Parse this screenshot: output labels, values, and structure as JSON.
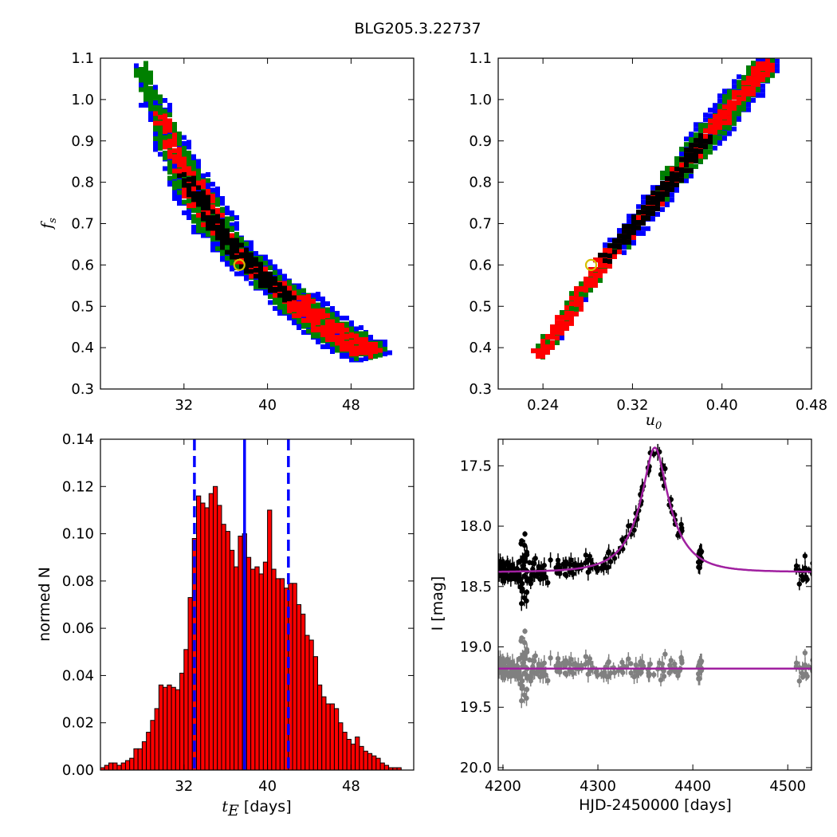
{
  "title": "BLG205.3.22737",
  "chart_data": [
    {
      "id": "tE-fs",
      "type": "heatmap",
      "xlim": [
        24,
        54
      ],
      "ylim": [
        0.3,
        1.1
      ],
      "xticks": [
        32,
        40,
        48
      ],
      "yticks": [
        0.3,
        0.4,
        0.5,
        0.6,
        0.7,
        0.8,
        0.9,
        1.0,
        1.1
      ],
      "xlabel": "",
      "ylabel": "f_s",
      "ylabel_main": "f",
      "ylabel_sub": "s",
      "colors": {
        "outer": "#0000ff",
        "mid": "#008000",
        "inner": "#ff0000",
        "core": "#000000",
        "marker": "#d4c000"
      },
      "curve": [
        [
          27.5,
          1.08
        ],
        [
          28.5,
          1.02
        ],
        [
          29.5,
          0.96
        ],
        [
          30.5,
          0.89
        ],
        [
          32,
          0.82
        ],
        [
          33.5,
          0.75
        ],
        [
          35,
          0.69
        ],
        [
          36.5,
          0.64
        ],
        [
          38,
          0.6
        ],
        [
          40,
          0.56
        ],
        [
          42,
          0.52
        ],
        [
          44,
          0.48
        ],
        [
          46,
          0.44
        ],
        [
          48,
          0.41
        ],
        [
          50,
          0.38
        ]
      ],
      "widths": [
        0.35,
        0.6,
        0.9,
        1.3,
        1.6,
        1.7,
        1.6,
        1.5,
        1.4,
        1.4,
        1.6,
        1.8,
        2.0,
        2.0,
        1.4
      ],
      "marker": [
        37.3,
        0.6
      ]
    },
    {
      "id": "u0-fs",
      "type": "heatmap",
      "xlim": [
        0.2,
        0.48
      ],
      "ylim": [
        0.3,
        1.1
      ],
      "xticks": [
        0.24,
        0.32,
        0.4,
        0.48
      ],
      "xtick_labels": [
        "0.24",
        "0.32",
        "0.40",
        "0.48"
      ],
      "yticks": [
        0.3,
        0.4,
        0.5,
        0.6,
        0.7,
        0.8,
        0.9,
        1.0,
        1.1
      ],
      "xlabel": "u_0",
      "xlabel_main": "u",
      "xlabel_sub": "0",
      "ylabel": "",
      "colors": {
        "outer": "#0000ff",
        "mid": "#008000",
        "inner": "#ff0000",
        "core": "#000000",
        "marker": "#d4c000"
      },
      "curve": [
        [
          0.235,
          0.38
        ],
        [
          0.25,
          0.44
        ],
        [
          0.265,
          0.5
        ],
        [
          0.28,
          0.56
        ],
        [
          0.295,
          0.62
        ],
        [
          0.31,
          0.66
        ],
        [
          0.325,
          0.71
        ],
        [
          0.34,
          0.76
        ],
        [
          0.355,
          0.81
        ],
        [
          0.37,
          0.86
        ],
        [
          0.385,
          0.91
        ],
        [
          0.4,
          0.96
        ],
        [
          0.415,
          1.01
        ],
        [
          0.43,
          1.06
        ],
        [
          0.44,
          1.09
        ]
      ],
      "widths": [
        0.004,
        0.004,
        0.004,
        0.005,
        0.006,
        0.007,
        0.007,
        0.008,
        0.009,
        0.01,
        0.011,
        0.012,
        0.012,
        0.01,
        0.008
      ],
      "marker": [
        0.283,
        0.6
      ]
    },
    {
      "id": "tE-hist",
      "type": "bar",
      "xlim": [
        24,
        54
      ],
      "ylim": [
        0,
        0.14
      ],
      "xticks": [
        32,
        40,
        48
      ],
      "yticks": [
        0.0,
        0.02,
        0.04,
        0.06,
        0.08,
        0.1,
        0.12,
        0.14
      ],
      "ytick_labels": [
        "0.00",
        "0.02",
        "0.04",
        "0.06",
        "0.08",
        "0.10",
        "0.12",
        "0.14"
      ],
      "xlabel": "t_E [days]",
      "xlabel_main": "t",
      "xlabel_sub": "E",
      "xlabel_unit": " [days]",
      "ylabel": "normed N",
      "bar_start": 24.0,
      "bar_width": 0.4,
      "values": [
        0.001,
        0.002,
        0.003,
        0.003,
        0.002,
        0.003,
        0.004,
        0.005,
        0.009,
        0.009,
        0.012,
        0.016,
        0.021,
        0.026,
        0.036,
        0.035,
        0.036,
        0.035,
        0.034,
        0.041,
        0.051,
        0.073,
        0.098,
        0.116,
        0.113,
        0.111,
        0.117,
        0.12,
        0.112,
        0.104,
        0.101,
        0.093,
        0.086,
        0.099,
        0.1,
        0.09,
        0.085,
        0.086,
        0.083,
        0.088,
        0.11,
        0.085,
        0.081,
        0.081,
        0.077,
        0.079,
        0.079,
        0.07,
        0.066,
        0.057,
        0.055,
        0.048,
        0.036,
        0.031,
        0.028,
        0.028,
        0.026,
        0.02,
        0.016,
        0.013,
        0.011,
        0.014,
        0.01,
        0.008,
        0.007,
        0.006,
        0.005,
        0.003,
        0.002,
        0.001,
        0.001,
        0.001
      ],
      "bar_color": "#ff0000",
      "vline_solid": 37.8,
      "vlines_dashed": [
        33.0,
        42.0
      ],
      "line_color": "#0000ff"
    },
    {
      "id": "lightcurve",
      "type": "scatter",
      "xlim": [
        4195,
        4525
      ],
      "ylim": [
        20.02,
        17.28
      ],
      "xticks": [
        4200,
        4300,
        4400,
        4500
      ],
      "yticks": [
        17.5,
        18.0,
        18.5,
        19.0,
        19.5,
        20.0
      ],
      "ytick_labels": [
        "17.5",
        "18.0",
        "18.5",
        "19.0",
        "19.5",
        "20.0"
      ],
      "xlabel": "HJD-2450000 [days]",
      "ylabel": "I [mag]",
      "model": {
        "t0": 4360,
        "tE": 37.3,
        "u0": 0.283,
        "fs": 0.6,
        "base": 18.38,
        "color": "#a020a0"
      },
      "residual_line": 19.18,
      "data_color": "#000000",
      "residual_color": "#808080"
    }
  ]
}
